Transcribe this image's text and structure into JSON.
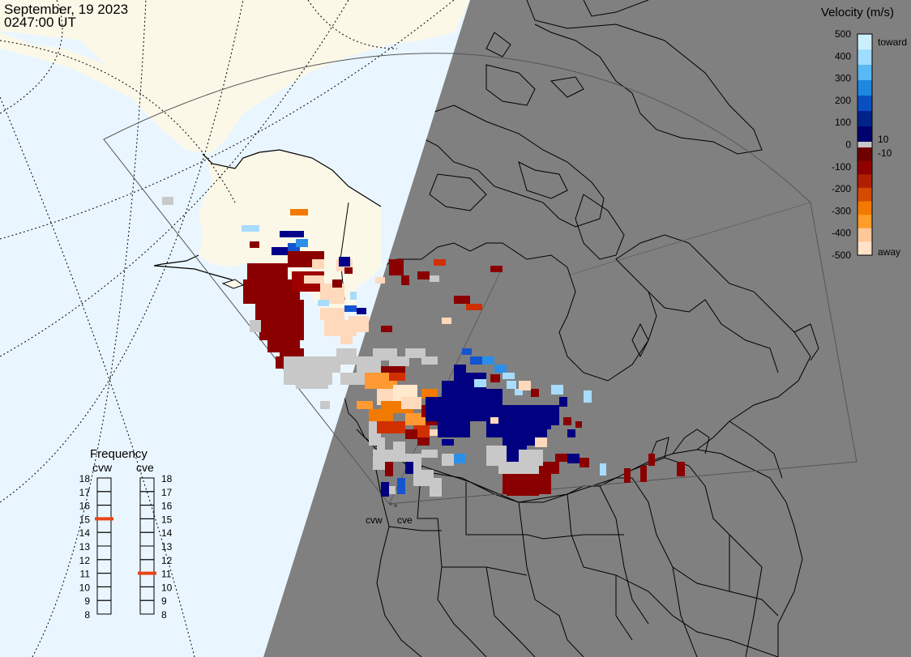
{
  "header": {
    "date": "September, 19 2023",
    "time": "0247:00 UT"
  },
  "radars": [
    "cvw",
    "cve"
  ],
  "velocity_scale": {
    "title": "Velocity (m/s)",
    "toward_label": "toward",
    "away_label": "away",
    "ticks": [
      "500",
      "400",
      "300",
      "200",
      "100",
      "0",
      "-100",
      "-200",
      "-300",
      "-400",
      "-500"
    ],
    "inner_ticks": [
      "10",
      "-10"
    ],
    "colors": [
      "#ccefff",
      "#9fdcff",
      "#5ab8f5",
      "#1e88e0",
      "#0a4fc0",
      "#00238a",
      "#00006e",
      "#6e0000",
      "#900000",
      "#b02000",
      "#d44a00",
      "#f27a00",
      "#ff9d2a",
      "#ffc89a",
      "#ffe2c8"
    ]
  },
  "frequency_panel": {
    "title": "Frequency",
    "labels": [
      "cvw",
      "cve"
    ],
    "ticks": [
      "18",
      "17",
      "16",
      "15",
      "14",
      "13",
      "12",
      "11",
      "10",
      "9",
      "8"
    ],
    "cvw_value": 15,
    "cve_value": 11,
    "marker_color": "#e8451a"
  },
  "map_colors": {
    "ocean": "#eaf6ff",
    "land_day": "#fbf8e8",
    "night": "#808080",
    "ground_scatter": "#c8c8c8"
  }
}
